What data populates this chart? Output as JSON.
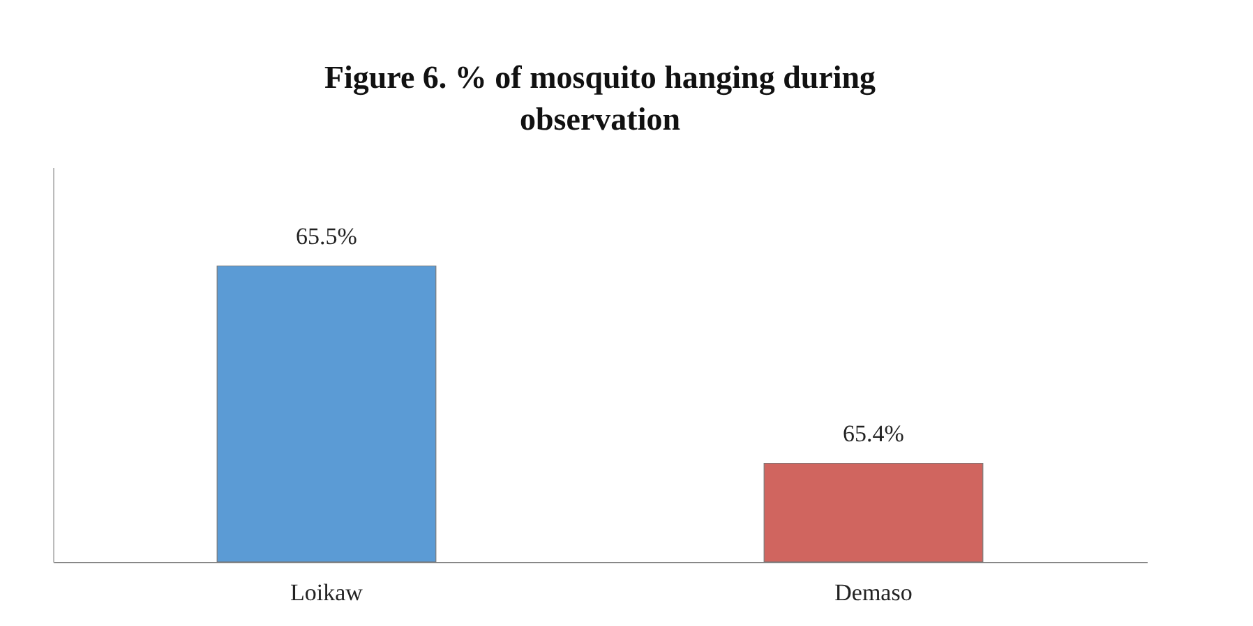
{
  "chart_data": {
    "type": "bar",
    "title": "Figure 6. % of mosquito hanging during observation",
    "categories": [
      "Loikaw",
      "Demaso"
    ],
    "values": [
      65.5,
      65.4
    ],
    "colors": [
      "#5b9bd5",
      "#d0655f"
    ],
    "value_labels": [
      "65.5%",
      "65.4%"
    ],
    "ylim": [
      65.35,
      65.55
    ],
    "tick_labels": "x"
  }
}
